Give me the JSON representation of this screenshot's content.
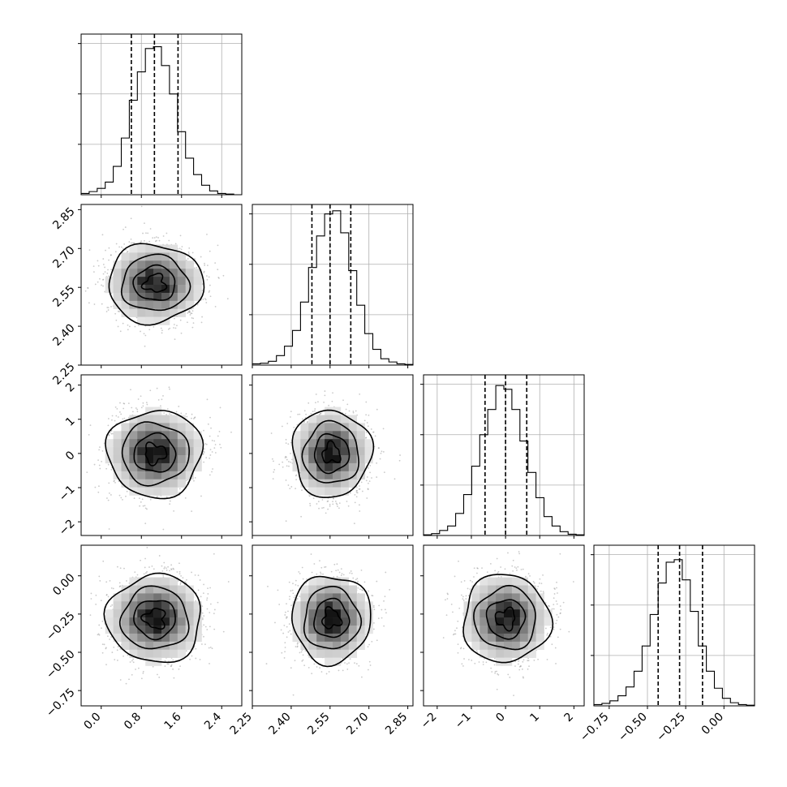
{
  "chart_data": {
    "type": "corner",
    "parameters": 4,
    "parameter_labels": [
      "",
      "",
      "",
      ""
    ],
    "axes": [
      {
        "range": [
          -0.4,
          2.8
        ],
        "ticks": [
          0.0,
          0.8,
          1.6,
          2.4
        ],
        "tick_labels": [
          "0.0",
          "0.8",
          "1.6",
          "2.4"
        ],
        "quantiles": [
          0.6,
          1.06,
          1.53
        ]
      },
      {
        "range": [
          2.25,
          2.87
        ],
        "ticks": [
          2.25,
          2.4,
          2.55,
          2.7,
          2.85
        ],
        "tick_labels": [
          "2.25",
          "2.40",
          "2.55",
          "2.70",
          "2.85"
        ],
        "quantiles": [
          2.48,
          2.55,
          2.63
        ]
      },
      {
        "range": [
          -2.4,
          2.3
        ],
        "ticks": [
          -2,
          -1,
          0,
          1,
          2
        ],
        "tick_labels": [
          "−2",
          "−1",
          "0",
          "1",
          "2"
        ],
        "quantiles": [
          -0.6,
          0.0,
          0.62
        ]
      },
      {
        "range": [
          -0.85,
          0.2
        ],
        "ticks": [
          -0.75,
          -0.5,
          -0.25,
          0.0
        ],
        "tick_labels": [
          "−0.75",
          "−0.50",
          "−0.25",
          "0.00"
        ],
        "quantiles": [
          -0.43,
          -0.29,
          -0.14
        ]
      }
    ],
    "histograms": [
      {
        "param": 0,
        "bin_edges": [
          -0.4,
          -0.24,
          -0.08,
          0.08,
          0.24,
          0.4,
          0.56,
          0.72,
          0.88,
          1.04,
          1.2,
          1.36,
          1.52,
          1.68,
          1.84,
          2.0,
          2.16,
          2.32,
          2.48,
          2.64,
          2.8
        ],
        "counts": [
          2,
          5,
          10,
          20,
          45,
          90,
          150,
          195,
          232,
          235,
          205,
          160,
          100,
          58,
          32,
          15,
          6,
          2,
          1,
          0
        ]
      },
      {
        "param": 1,
        "bin_edges": [
          2.25,
          2.281,
          2.312,
          2.343,
          2.374,
          2.405,
          2.436,
          2.467,
          2.498,
          2.529,
          2.56,
          2.591,
          2.622,
          2.653,
          2.684,
          2.715,
          2.746,
          2.777,
          2.808,
          2.839,
          2.87
        ],
        "counts": [
          2,
          3,
          6,
          15,
          30,
          55,
          100,
          155,
          205,
          240,
          245,
          210,
          150,
          95,
          50,
          25,
          10,
          5,
          2,
          1
        ]
      },
      {
        "param": 2,
        "bin_edges": [
          -2.4,
          -2.165,
          -1.93,
          -1.695,
          -1.46,
          -1.225,
          -0.99,
          -0.755,
          -0.52,
          -0.285,
          -0.05,
          0.185,
          0.42,
          0.655,
          0.89,
          1.125,
          1.36,
          1.595,
          1.83,
          2.065,
          2.3
        ],
        "counts": [
          1,
          3,
          8,
          15,
          35,
          65,
          110,
          160,
          200,
          238,
          232,
          200,
          150,
          100,
          60,
          30,
          15,
          6,
          2,
          1
        ]
      },
      {
        "param": 3,
        "bin_edges": [
          -0.85,
          -0.7975,
          -0.745,
          -0.6925,
          -0.64,
          -0.5875,
          -0.535,
          -0.4825,
          -0.43,
          -0.3775,
          -0.325,
          -0.2725,
          -0.22,
          -0.1675,
          -0.115,
          -0.0625,
          -0.01,
          0.0425,
          0.095,
          0.1475,
          0.2
        ],
        "counts": [
          2,
          4,
          8,
          16,
          30,
          55,
          95,
          145,
          195,
          228,
          232,
          200,
          150,
          95,
          55,
          28,
          12,
          5,
          2,
          1
        ]
      }
    ],
    "hist_ylim": [
      0,
      255
    ],
    "hist_ytick_values": [
      80,
      160,
      240
    ],
    "grid": true,
    "pairs": [
      {
        "x": 0,
        "y": 1,
        "center": [
          1.07,
          2.565
        ],
        "sigma": [
          0.46,
          0.074
        ],
        "contour_radii": [
          0.45,
          0.9,
          1.45,
          2.05
        ]
      },
      {
        "x": 0,
        "y": 2,
        "center": [
          1.07,
          0.0
        ],
        "sigma": [
          0.46,
          0.62
        ],
        "contour_radii": [
          0.45,
          0.9,
          1.45,
          2.05
        ]
      },
      {
        "x": 0,
        "y": 3,
        "center": [
          1.07,
          -0.28
        ],
        "sigma": [
          0.46,
          0.14
        ],
        "contour_radii": [
          0.45,
          0.9,
          1.45,
          2.05
        ]
      },
      {
        "x": 1,
        "y": 2,
        "center": [
          2.555,
          0.0
        ],
        "sigma": [
          0.074,
          0.62
        ],
        "contour_radii": [
          0.45,
          0.9,
          1.45,
          2.05
        ]
      },
      {
        "x": 1,
        "y": 3,
        "center": [
          2.555,
          -0.28
        ],
        "sigma": [
          0.074,
          0.14
        ],
        "contour_radii": [
          0.45,
          0.9,
          1.45,
          2.05
        ]
      },
      {
        "x": 2,
        "y": 3,
        "center": [
          0.01,
          -0.28
        ],
        "sigma": [
          0.62,
          0.14
        ],
        "contour_radii": [
          0.45,
          0.9,
          1.45,
          2.05
        ]
      }
    ]
  }
}
